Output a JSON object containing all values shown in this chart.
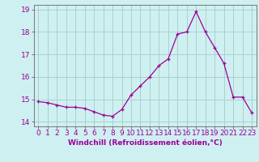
{
  "x": [
    0,
    1,
    2,
    3,
    4,
    5,
    6,
    7,
    8,
    9,
    10,
    11,
    12,
    13,
    14,
    15,
    16,
    17,
    18,
    19,
    20,
    21,
    22,
    23
  ],
  "y": [
    14.9,
    14.85,
    14.75,
    14.65,
    14.65,
    14.6,
    14.45,
    14.3,
    14.25,
    14.55,
    15.2,
    15.6,
    16.0,
    16.5,
    16.8,
    17.9,
    18.0,
    18.9,
    18.0,
    17.3,
    16.6,
    15.1,
    15.1,
    14.4
  ],
  "line_color": "#990099",
  "marker": "+",
  "marker_size": 3.5,
  "marker_linewidth": 0.9,
  "line_width": 0.9,
  "bg_color": "#cff0f0",
  "grid_color": "#aacfcf",
  "xlabel": "Windchill (Refroidissement éolien,°C)",
  "xlabel_fontsize": 6.5,
  "tick_fontsize": 6.5,
  "ylim": [
    13.8,
    19.2
  ],
  "xlim": [
    -0.5,
    23.5
  ],
  "yticks": [
    14,
    15,
    16,
    17,
    18,
    19
  ],
  "xticks": [
    0,
    1,
    2,
    3,
    4,
    5,
    6,
    7,
    8,
    9,
    10,
    11,
    12,
    13,
    14,
    15,
    16,
    17,
    18,
    19,
    20,
    21,
    22,
    23
  ],
  "spine_color": "#777777"
}
